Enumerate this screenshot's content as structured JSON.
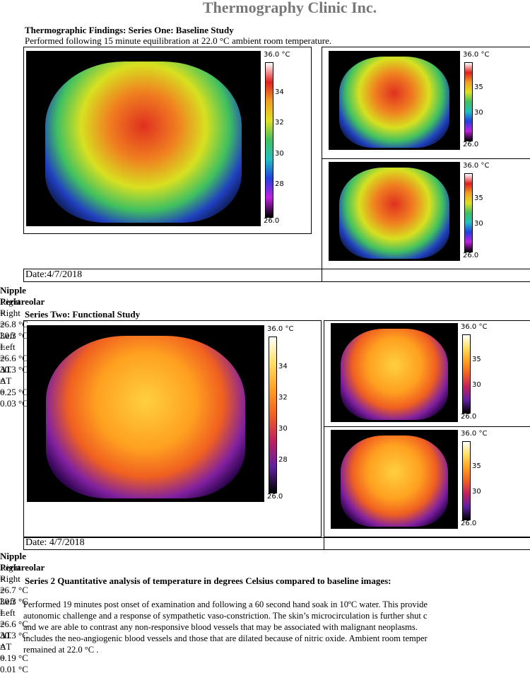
{
  "header": {
    "title": "Thermography Clinic Inc."
  },
  "series1": {
    "title": "Thermographic Findings: Series One: Baseline Study",
    "subtitle": "Performed following 15 minute equilibration at 22.0 °C ambient room temperature.",
    "scales": [
      [
        "36.0 °C",
        "34",
        "32",
        "30",
        "28",
        "26.0"
      ],
      [
        "36.0 °C",
        "35",
        "30",
        "26.0"
      ],
      [
        "36.0 °C",
        "35",
        "30",
        "26.0"
      ]
    ],
    "date": "Date:4/7/2018",
    "rows": [
      [
        "Nipple",
        "Right",
        "=",
        "26.8 °C",
        "Left",
        "=",
        "26.6 °C",
        "ΔT",
        "=",
        "0.25 °C"
      ],
      [
        "Periareolar",
        "Right",
        "=",
        "30.3 °C",
        "Left",
        "=",
        "30.3 °C",
        "ΔT",
        "=",
        "0.03 °C"
      ]
    ]
  },
  "series2": {
    "title": "Series Two: Functional Study",
    "scales": [
      [
        "36.0 °C",
        "34",
        "32",
        "30",
        "28",
        "26.0"
      ],
      [
        "36.0 °C",
        "35",
        "30",
        "26.0"
      ],
      [
        "36.0 °C",
        "35",
        "30",
        "26.0"
      ]
    ],
    "date": "Date: 4/7/2018",
    "rows": [
      [
        "Nipple",
        "Right",
        "=",
        "26.7 °C",
        "Left",
        "=",
        "26.6 °C",
        "ΔT",
        "=",
        "0.19 °C"
      ],
      [
        "Periareolar",
        "Right",
        "=",
        "30.3 °C",
        "Left",
        "=",
        "30.3 °C",
        "ΔT",
        "=",
        "0.01 °C"
      ]
    ]
  },
  "analysis": {
    "title": "Series 2 Quantitative analysis of temperature in degrees Celsius compared to baseline images:",
    "lines": [
      "Performed 19 minutes post onset of examination and following a 60 second hand soak in 10ºC water. This provide",
      "autonomic challenge and a response of sympathetic vaso-constriction. The skin’s microcirculation is further shut c",
      "and we are able to contrast any non-responsive blood vessels that may be associated with malignant neoplasms.",
      "includes the neo-angiogenic blood vessels and those that are dilated because of nitric oxide. Ambient room temper",
      "remained at 22.0 °C ."
    ]
  }
}
